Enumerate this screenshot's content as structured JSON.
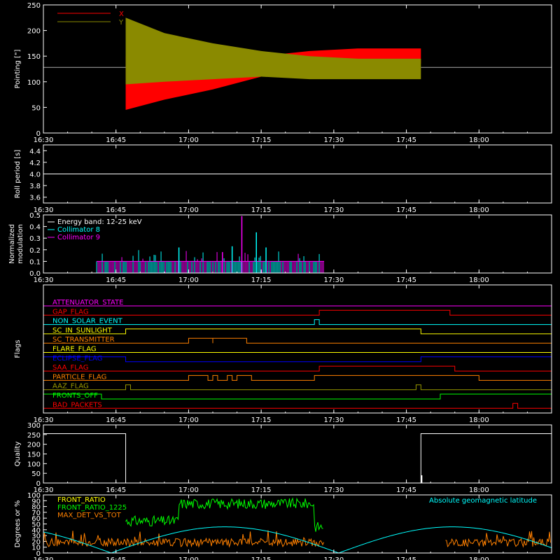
{
  "time_ticks": [
    "16:30",
    "16:45",
    "17:00",
    "17:15",
    "17:30",
    "17:45",
    "18:00"
  ],
  "colors": {
    "axis": "#ffffff",
    "red": "#ff0000",
    "olive": "#8a8a00",
    "cyan": "#00ffff",
    "magenta": "#ff00ff",
    "green": "#00ff00",
    "orange": "#ff8000",
    "blue": "#0000ff",
    "yellow": "#ffff00",
    "brown_olive": "#999900"
  },
  "chart_data": [
    {
      "id": "pointing",
      "type": "area",
      "ylabel": "Pointing [\"]",
      "ylim": [
        0,
        250
      ],
      "yticks": [
        0,
        50,
        100,
        150,
        200,
        250
      ],
      "legend": [
        "X",
        "Y"
      ],
      "series": [
        {
          "name": "X",
          "color": "#ff0000",
          "x": [
            "16:47",
            "16:55",
            "17:05",
            "17:15",
            "17:25",
            "17:35",
            "17:48"
          ],
          "upper": [
            150,
            115,
            125,
            150,
            160,
            165,
            165
          ],
          "lower": [
            45,
            65,
            85,
            110,
            130,
            135,
            135
          ]
        },
        {
          "name": "Y",
          "color": "#8a8a00",
          "x": [
            "16:47",
            "16:55",
            "17:05",
            "17:15",
            "17:25",
            "17:35",
            "17:48"
          ],
          "upper": [
            225,
            195,
            175,
            160,
            150,
            145,
            145
          ],
          "lower": [
            95,
            100,
            105,
            110,
            105,
            105,
            105
          ]
        }
      ],
      "baseline": 128
    },
    {
      "id": "roll",
      "type": "line",
      "ylabel": "Roll period [s]",
      "ylim": [
        3.5,
        4.5
      ],
      "yticks": [
        "3.6",
        "3.8",
        "4.0",
        "4.2",
        "4.4"
      ],
      "series": [
        {
          "x": [
            "16:30",
            "18:15"
          ],
          "y": [
            4.0,
            4.0
          ]
        }
      ]
    },
    {
      "id": "modulation",
      "type": "line",
      "ylabel": "Normalized modulation",
      "ylim": [
        0,
        0.5
      ],
      "yticks": [
        "0.0",
        "0.1",
        "0.2",
        "0.3",
        "0.4",
        "0.5"
      ],
      "legend": [
        "Energy band: 12-25 keV",
        "Collimator 8",
        "Collimator 9"
      ],
      "span": [
        "16:41",
        "17:28"
      ],
      "spikes": [
        {
          "x": "17:11",
          "y": 0.49,
          "series": "Collimator 9"
        },
        {
          "x": "17:14",
          "y": 0.35,
          "series": "Collimator 8"
        },
        {
          "x": "17:09",
          "y": 0.23,
          "series": "Collimator 8"
        },
        {
          "x": "16:58",
          "y": 0.22,
          "series": "Collimator 8"
        },
        {
          "x": "17:16",
          "y": 0.22,
          "series": "Collimator 8"
        },
        {
          "x": "17:07",
          "y": 0.18,
          "series": "Collimator 9"
        }
      ]
    },
    {
      "id": "flags",
      "type": "line",
      "ylabel": "Flags",
      "flags": [
        {
          "name": "ATTENUATOR_STATE",
          "color": "#ff00ff",
          "segments": []
        },
        {
          "name": "GAP_FLAG",
          "color": "#ff0000",
          "segments": [
            [
              "17:27",
              "17:54"
            ]
          ]
        },
        {
          "name": "NON_SOLAR_EVENT",
          "color": "#00ffff",
          "segments": [
            [
              "17:26",
              "17:27"
            ]
          ]
        },
        {
          "name": "SC_IN_SUNLIGHT",
          "color": "#ffff00",
          "segments": [
            [
              "16:47",
              "17:48"
            ]
          ]
        },
        {
          "name": "SC_TRANSMITTER",
          "color": "#ff8000",
          "segments": [
            [
              "17:00",
              "17:05"
            ],
            [
              "17:05",
              "17:12"
            ]
          ]
        },
        {
          "name": "FLARE_FLAG",
          "color": "#ffff00",
          "segments": []
        },
        {
          "name": "ECLIPSE_FLAG",
          "color": "#0000ff",
          "segments": [
            [
              "16:30",
              "16:47"
            ],
            [
              "17:48",
              "18:15"
            ]
          ]
        },
        {
          "name": "SAA_FLAG",
          "color": "#ff0000",
          "segments": [
            [
              "17:27",
              "17:55"
            ]
          ]
        },
        {
          "name": "PARTICLE_FLAG",
          "color": "#ff8000",
          "segments": [
            [
              "17:00",
              "17:04"
            ],
            [
              "17:05",
              "17:06"
            ],
            [
              "17:08",
              "17:09"
            ],
            [
              "17:10",
              "17:13"
            ],
            [
              "17:26",
              "18:00"
            ]
          ]
        },
        {
          "name": "AAZ_FLAG",
          "color": "#999900",
          "segments": [
            [
              "16:47",
              "16:48"
            ],
            [
              "17:47",
              "17:48"
            ]
          ]
        },
        {
          "name": "FRONTS_OFF",
          "color": "#00ff00",
          "segments": [
            [
              "16:30",
              "16:42"
            ],
            [
              "17:52",
              "18:15"
            ]
          ]
        },
        {
          "name": "BAD_PACKETS",
          "color": "#ff0000",
          "segments": [
            [
              "18:07",
              "18:08"
            ]
          ]
        }
      ]
    },
    {
      "id": "quality",
      "type": "line",
      "ylabel": "Quality",
      "ylim": [
        0,
        300
      ],
      "yticks": [
        "0",
        "50",
        "100",
        "150",
        "200",
        "250",
        "300"
      ],
      "series": [
        {
          "x": [
            "16:30",
            "16:47",
            "16:47",
            "17:48",
            "17:48",
            "18:15"
          ],
          "y": [
            255,
            255,
            0,
            0,
            255,
            255
          ]
        }
      ]
    },
    {
      "id": "ratios",
      "type": "line",
      "ylabel": "Degrees or %",
      "ylim": [
        0,
        100
      ],
      "yticks": [
        "0",
        "10",
        "20",
        "30",
        "40",
        "50",
        "60",
        "70",
        "80",
        "90",
        "100"
      ],
      "legend": [
        "FRONT_RATIO",
        "FRONT_RATIO_1225",
        "MAX_DET_VS_TOT"
      ],
      "annotation": "Absolute geomagnetic latitude",
      "series": [
        {
          "name": "FRONT_RATIO",
          "color": "#ffff00"
        },
        {
          "name": "FRONT_RATIO_1225",
          "color": "#00ff00"
        },
        {
          "name": "MAX_DET_VS_TOT",
          "color": "#ff8000"
        },
        {
          "name": "Absolute geomagnetic latitude",
          "color": "#00ffff"
        }
      ]
    }
  ]
}
